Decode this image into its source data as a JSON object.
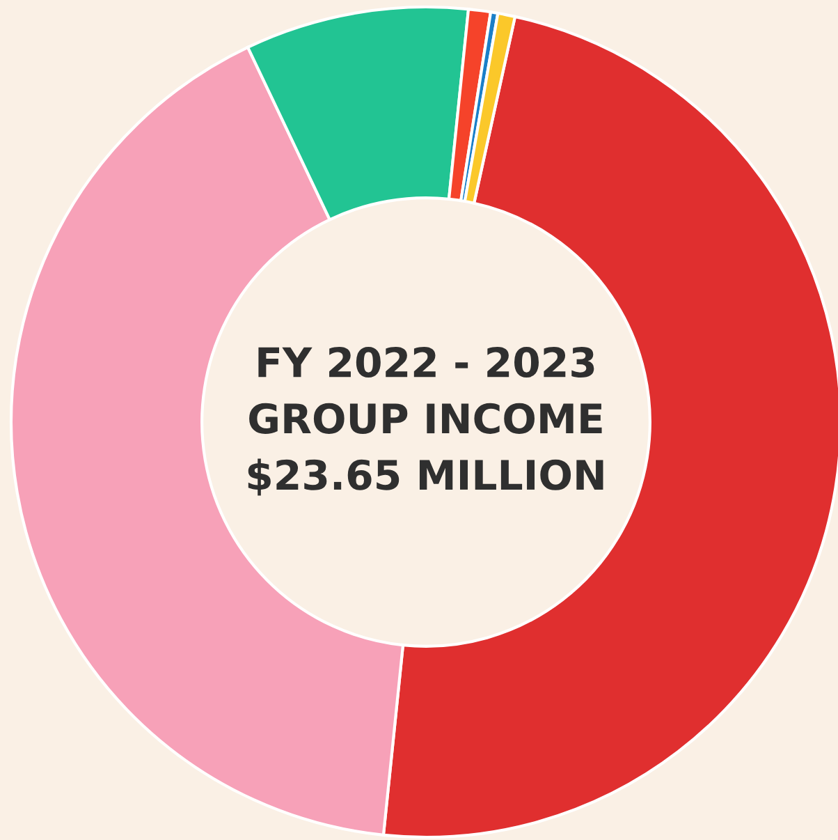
{
  "chart_data": {
    "type": "donut",
    "title": "FY 2022 - 2023\nGROUP INCOME\n$23.65 MILLION",
    "categories": [
      null,
      null,
      null,
      null,
      null,
      null
    ],
    "values": [
      48.19,
      41.3,
      8.7,
      0.86,
      0.28,
      0.67
    ],
    "colors": [
      "#e02f2f",
      "#f7a1b8",
      "#22c493",
      "#f5432a",
      "#1a7fc8",
      "#fbc82a"
    ],
    "legend": false
  }
}
